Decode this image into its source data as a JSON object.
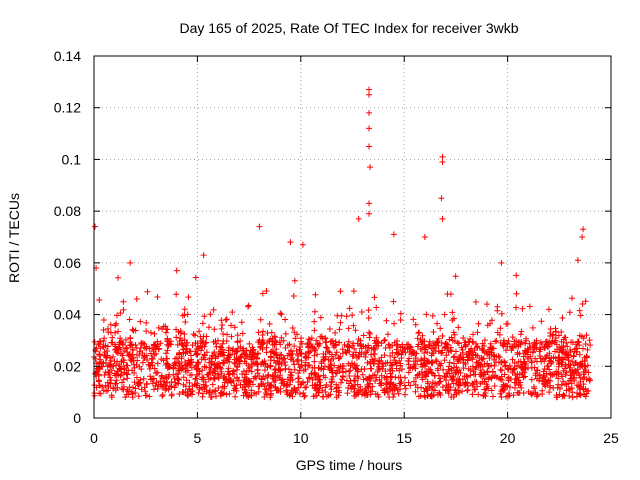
{
  "chart_data": {
    "type": "scatter",
    "title": "Day 165 of 2025, Rate Of TEC Index for receiver 3wkb",
    "xlabel": "GPS time / hours",
    "ylabel": "ROTI / TECUs",
    "xlim": [
      0,
      25
    ],
    "ylim": [
      0,
      0.14
    ],
    "x_ticks": [
      0,
      5,
      10,
      15,
      20,
      25
    ],
    "x_tick_labels": [
      "0",
      "5",
      "10",
      "15",
      "20",
      "25"
    ],
    "y_ticks": [
      0,
      0.02,
      0.04,
      0.06,
      0.08,
      0.1,
      0.12,
      0.14
    ],
    "y_tick_labels": [
      "0",
      "0.02",
      "0.04",
      "0.06",
      "0.08",
      "0.1",
      "0.12",
      "0.14"
    ],
    "grid": true,
    "marker": "plus",
    "color": "#ff0000",
    "x_range_data": [
      0,
      24
    ],
    "baseline_band": [
      0.008,
      0.03
    ],
    "notable_points": [
      {
        "x": 0.05,
        "y": 0.074
      },
      {
        "x": 0.1,
        "y": 0.058
      },
      {
        "x": 1.75,
        "y": 0.06
      },
      {
        "x": 4.0,
        "y": 0.057
      },
      {
        "x": 5.3,
        "y": 0.063
      },
      {
        "x": 8.0,
        "y": 0.074
      },
      {
        "x": 9.5,
        "y": 0.068
      },
      {
        "x": 10.1,
        "y": 0.067
      },
      {
        "x": 12.8,
        "y": 0.077
      },
      {
        "x": 13.3,
        "y": 0.127
      },
      {
        "x": 13.3,
        "y": 0.125
      },
      {
        "x": 13.3,
        "y": 0.118
      },
      {
        "x": 13.3,
        "y": 0.112
      },
      {
        "x": 13.3,
        "y": 0.105
      },
      {
        "x": 13.35,
        "y": 0.097
      },
      {
        "x": 13.3,
        "y": 0.083
      },
      {
        "x": 13.3,
        "y": 0.079
      },
      {
        "x": 14.5,
        "y": 0.071
      },
      {
        "x": 16.0,
        "y": 0.07
      },
      {
        "x": 16.85,
        "y": 0.101
      },
      {
        "x": 16.85,
        "y": 0.099
      },
      {
        "x": 16.8,
        "y": 0.085
      },
      {
        "x": 16.85,
        "y": 0.077
      },
      {
        "x": 19.7,
        "y": 0.06
      },
      {
        "x": 22.0,
        "y": 0.042
      },
      {
        "x": 23.65,
        "y": 0.073
      },
      {
        "x": 23.6,
        "y": 0.07
      },
      {
        "x": 23.4,
        "y": 0.061
      }
    ]
  }
}
